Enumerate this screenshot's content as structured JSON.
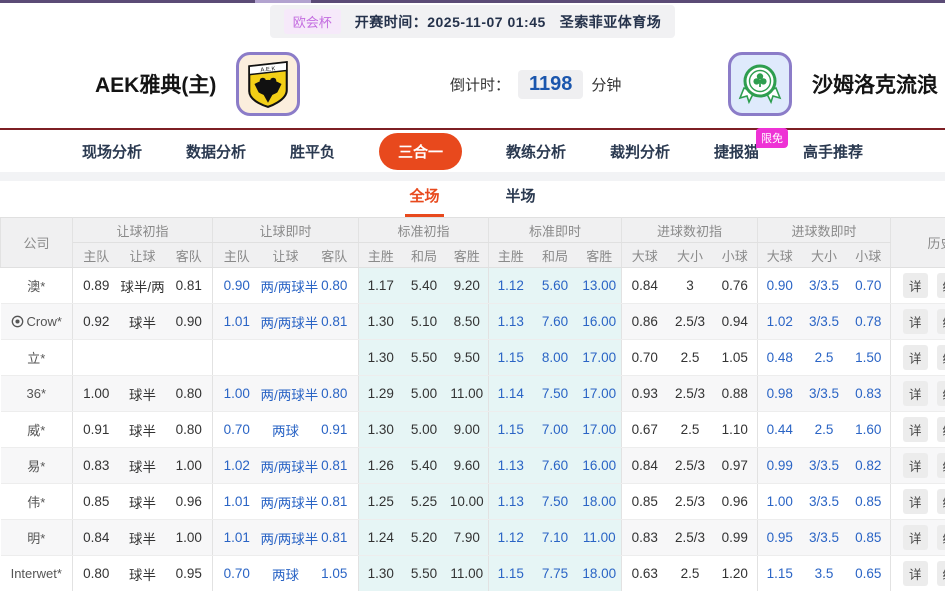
{
  "theme": {
    "accent_red": "#e8491d",
    "live_blue": "#2a64c5",
    "badge_pink": "#ee32d5",
    "logo_border_purple": "#8b7cc8",
    "countdown_blue": "#1b56ad",
    "standard_col_bg": "#e6f5f5"
  },
  "top_bar": {
    "league": "欧会杯",
    "kickoff_label": "开赛时间：",
    "kickoff_time": "2025-11-07 01:45",
    "venue": "圣索菲亚体育场"
  },
  "match_header": {
    "home_team": "AEK雅典(主)",
    "away_team": "沙姆洛克流浪",
    "home_logo_icon": "aek-crest-icon",
    "away_logo_icon": "shamrock-rovers-crest-icon",
    "countdown_label": "倒计时：",
    "countdown_value": "1198",
    "countdown_unit": "分钟"
  },
  "nav": {
    "items": [
      {
        "label": "现场分析",
        "active": false
      },
      {
        "label": "数据分析",
        "active": false
      },
      {
        "label": "胜平负",
        "active": false
      },
      {
        "label": "三合一",
        "active": true
      },
      {
        "label": "教练分析",
        "active": false
      },
      {
        "label": "裁判分析",
        "active": false
      },
      {
        "label": "捷报猫",
        "active": false,
        "badge": "限免"
      },
      {
        "label": "高手推荐",
        "active": false
      }
    ]
  },
  "period_tabs": [
    {
      "label": "全场",
      "active": true
    },
    {
      "label": "半场",
      "active": false
    }
  ],
  "odds_table": {
    "company_header": "公司",
    "history_header": "历史",
    "detail_label": "详",
    "stats_label": "统",
    "groups": [
      {
        "label": "让球初指",
        "cols": [
          "主队",
          "让球",
          "客队"
        ],
        "live": false,
        "highlight": false
      },
      {
        "label": "让球即时",
        "cols": [
          "主队",
          "让球",
          "客队"
        ],
        "live": true,
        "highlight": false
      },
      {
        "label": "标准初指",
        "cols": [
          "主胜",
          "和局",
          "客胜"
        ],
        "live": false,
        "highlight": true
      },
      {
        "label": "标准即时",
        "cols": [
          "主胜",
          "和局",
          "客胜"
        ],
        "live": true,
        "highlight": true
      },
      {
        "label": "进球数初指",
        "cols": [
          "大球",
          "大小",
          "小球"
        ],
        "live": false,
        "highlight": false
      },
      {
        "label": "进球数即时",
        "cols": [
          "大球",
          "大小",
          "小球"
        ],
        "live": true,
        "highlight": false
      }
    ],
    "rows": [
      {
        "company": "澳*",
        "icon": null,
        "cells": [
          [
            "0.89",
            "球半/两",
            "0.81"
          ],
          [
            "0.90",
            "两/两球半",
            "0.80"
          ],
          [
            "1.17",
            "5.40",
            "9.20"
          ],
          [
            "1.12",
            "5.60",
            "13.00"
          ],
          [
            "0.84",
            "3",
            "0.76"
          ],
          [
            "0.90",
            "3/3.5",
            "0.70"
          ]
        ]
      },
      {
        "company": "Crow*",
        "icon": "football-target-icon",
        "cells": [
          [
            "0.92",
            "球半",
            "0.90"
          ],
          [
            "1.01",
            "两/两球半",
            "0.81"
          ],
          [
            "1.30",
            "5.10",
            "8.50"
          ],
          [
            "1.13",
            "7.60",
            "16.00"
          ],
          [
            "0.86",
            "2.5/3",
            "0.94"
          ],
          [
            "1.02",
            "3/3.5",
            "0.78"
          ]
        ]
      },
      {
        "company": "立*",
        "icon": null,
        "cells": [
          [
            "",
            "",
            ""
          ],
          [
            "",
            "",
            ""
          ],
          [
            "1.30",
            "5.50",
            "9.50"
          ],
          [
            "1.15",
            "8.00",
            "17.00"
          ],
          [
            "0.70",
            "2.5",
            "1.05"
          ],
          [
            "0.48",
            "2.5",
            "1.50"
          ]
        ]
      },
      {
        "company": "36*",
        "icon": null,
        "cells": [
          [
            "1.00",
            "球半",
            "0.80"
          ],
          [
            "1.00",
            "两/两球半",
            "0.80"
          ],
          [
            "1.29",
            "5.00",
            "11.00"
          ],
          [
            "1.14",
            "7.50",
            "17.00"
          ],
          [
            "0.93",
            "2.5/3",
            "0.88"
          ],
          [
            "0.98",
            "3/3.5",
            "0.83"
          ]
        ]
      },
      {
        "company": "威*",
        "icon": null,
        "cells": [
          [
            "0.91",
            "球半",
            "0.80"
          ],
          [
            "0.70",
            "两球",
            "0.91"
          ],
          [
            "1.30",
            "5.00",
            "9.00"
          ],
          [
            "1.15",
            "7.00",
            "17.00"
          ],
          [
            "0.67",
            "2.5",
            "1.10"
          ],
          [
            "0.44",
            "2.5",
            "1.60"
          ]
        ]
      },
      {
        "company": "易*",
        "icon": null,
        "cells": [
          [
            "0.83",
            "球半",
            "1.00"
          ],
          [
            "1.02",
            "两/两球半",
            "0.81"
          ],
          [
            "1.26",
            "5.40",
            "9.60"
          ],
          [
            "1.13",
            "7.60",
            "16.00"
          ],
          [
            "0.84",
            "2.5/3",
            "0.97"
          ],
          [
            "0.99",
            "3/3.5",
            "0.82"
          ]
        ]
      },
      {
        "company": "伟*",
        "icon": null,
        "cells": [
          [
            "0.85",
            "球半",
            "0.96"
          ],
          [
            "1.01",
            "两/两球半",
            "0.81"
          ],
          [
            "1.25",
            "5.25",
            "10.00"
          ],
          [
            "1.13",
            "7.50",
            "18.00"
          ],
          [
            "0.85",
            "2.5/3",
            "0.96"
          ],
          [
            "1.00",
            "3/3.5",
            "0.85"
          ]
        ]
      },
      {
        "company": "明*",
        "icon": null,
        "cells": [
          [
            "0.84",
            "球半",
            "1.00"
          ],
          [
            "1.01",
            "两/两球半",
            "0.81"
          ],
          [
            "1.24",
            "5.20",
            "7.90"
          ],
          [
            "1.12",
            "7.10",
            "11.00"
          ],
          [
            "0.83",
            "2.5/3",
            "0.99"
          ],
          [
            "0.95",
            "3/3.5",
            "0.85"
          ]
        ]
      },
      {
        "company": "Interwet*",
        "icon": null,
        "cells": [
          [
            "0.80",
            "球半",
            "0.95"
          ],
          [
            "0.70",
            "两球",
            "1.05"
          ],
          [
            "1.30",
            "5.50",
            "11.00"
          ],
          [
            "1.15",
            "7.75",
            "18.00"
          ],
          [
            "0.63",
            "2.5",
            "1.20"
          ],
          [
            "1.15",
            "3.5",
            "0.65"
          ]
        ]
      }
    ]
  }
}
